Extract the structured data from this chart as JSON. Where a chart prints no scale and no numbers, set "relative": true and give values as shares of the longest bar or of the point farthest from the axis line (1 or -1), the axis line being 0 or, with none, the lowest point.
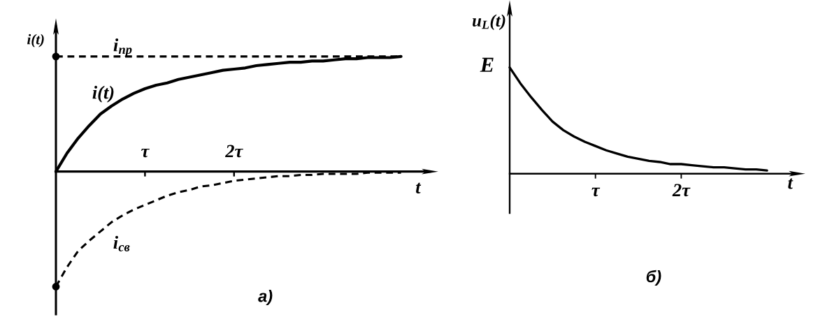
{
  "chart_data": [
    {
      "type": "line",
      "title": "а)",
      "xlabel": "t",
      "ylabel": "i(t)",
      "relative": true,
      "categories": [
        null,
        null,
        null,
        null,
        null,
        null,
        null,
        null,
        "τ",
        null,
        null,
        null,
        null,
        null,
        null,
        null,
        "2τ",
        null,
        null,
        null,
        null,
        null,
        null,
        null,
        null,
        null,
        null,
        null,
        null,
        null,
        null,
        null
      ],
      "series": [
        {
          "name": "i$_{пр}$",
          "color": "#000000",
          "line_style": "dashed",
          "values": [
            1,
            1,
            1,
            1,
            1,
            1,
            1,
            1,
            1,
            1,
            1,
            1,
            1,
            1,
            1,
            1,
            1,
            1,
            1,
            1,
            1,
            1,
            1,
            1,
            1,
            1,
            1,
            1,
            1,
            1,
            1,
            1
          ]
        },
        {
          "name": "i(t)",
          "color": "#000000",
          "line_style": "solid",
          "values": [
            0,
            0.16,
            0.29,
            0.4,
            0.5,
            0.57,
            0.63,
            0.68,
            0.72,
            0.75,
            0.77,
            0.8,
            0.82,
            0.84,
            0.86,
            0.88,
            0.89,
            0.9,
            0.92,
            0.93,
            0.94,
            0.95,
            0.95,
            0.96,
            0.96,
            0.97,
            0.98,
            0.98,
            0.99,
            0.99,
            0.99,
            1
          ]
        },
        {
          "name": "i$_{св}$",
          "color": "#000000",
          "line_style": "dashed",
          "values": [
            -1,
            -0.83,
            -0.69,
            -0.6,
            -0.52,
            -0.44,
            -0.38,
            -0.33,
            -0.29,
            -0.25,
            -0.21,
            -0.18,
            -0.16,
            -0.13,
            -0.12,
            -0.1,
            -0.08,
            -0.07,
            -0.06,
            -0.05,
            -0.04,
            -0.04,
            -0.03,
            -0.03,
            -0.02,
            -0.02,
            -0.02,
            -0.02,
            -0.01,
            -0.01,
            -0.01,
            -0.01
          ]
        },
        {
          "type": "scatter",
          "color": "#000000",
          "marker": "circle",
          "values": [
            1,
            null,
            null,
            null,
            null,
            null,
            null,
            null,
            null,
            null,
            null,
            null,
            null,
            null,
            null,
            null,
            null,
            null,
            null,
            null,
            null,
            null,
            null,
            null,
            null,
            null,
            null,
            null,
            null,
            null,
            null,
            null
          ]
        },
        {
          "type": "scatter",
          "color": "#000000",
          "marker": "circle",
          "values": [
            -1,
            null,
            null,
            null,
            null,
            null,
            null,
            null,
            null,
            null,
            null,
            null,
            null,
            null,
            null,
            null,
            null,
            null,
            null,
            null,
            null,
            null,
            null,
            null,
            null,
            null,
            null,
            null,
            null,
            null,
            null,
            null
          ]
        }
      ]
    },
    {
      "type": "line",
      "title": "б)",
      "xlabel": "t",
      "ylabel": "u$_{L}$(t)",
      "relative": true,
      "categories": [
        null,
        null,
        null,
        null,
        null,
        null,
        null,
        null,
        "τ",
        null,
        null,
        null,
        null,
        null,
        null,
        null,
        "2τ",
        null,
        null,
        null,
        null,
        null,
        null,
        null,
        null
      ],
      "annotations": [
        "E"
      ],
      "series": [
        {
          "color": "#000000",
          "line_style": "solid",
          "values": [
            1,
            0.85,
            0.72,
            0.6,
            0.49,
            0.41,
            0.35,
            0.3,
            0.26,
            0.22,
            0.19,
            0.16,
            0.14,
            0.12,
            0.11,
            0.09,
            0.09,
            0.08,
            0.07,
            0.06,
            0.06,
            0.05,
            0.04,
            0.04,
            0.03
          ]
        }
      ]
    }
  ]
}
